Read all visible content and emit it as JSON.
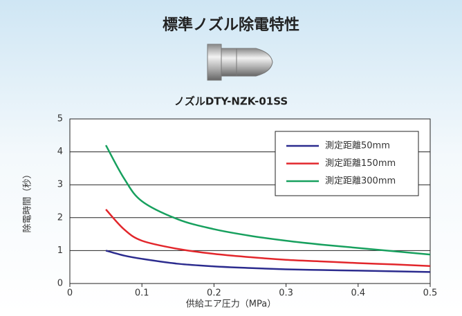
{
  "chart_data": {
    "type": "line",
    "title": "標準ノズル除電特性",
    "subtitle": "ノズルDTY-NZK-01SS",
    "x_label": "供給エア圧力（MPa）",
    "y_label": "除電時間（秒）",
    "x": [
      0.05,
      0.075,
      0.1,
      0.15,
      0.2,
      0.25,
      0.3,
      0.35,
      0.4,
      0.45,
      0.5
    ],
    "series": [
      {
        "name": "測定距離50mm",
        "color": "#2b2b8e",
        "values": [
          1.0,
          0.85,
          0.75,
          0.6,
          0.52,
          0.47,
          0.43,
          0.41,
          0.39,
          0.37,
          0.35
        ]
      },
      {
        "name": "測定距離150mm",
        "color": "#e2262b",
        "values": [
          2.25,
          1.65,
          1.3,
          1.05,
          0.9,
          0.8,
          0.72,
          0.67,
          0.62,
          0.58,
          0.53
        ]
      },
      {
        "name": "測定距離300mm",
        "color": "#17a05e",
        "values": [
          4.2,
          3.2,
          2.5,
          1.95,
          1.65,
          1.45,
          1.3,
          1.18,
          1.08,
          0.98,
          0.88
        ]
      }
    ],
    "xlim": [
      0,
      0.5
    ],
    "xticks": [
      0,
      0.1,
      0.2,
      0.3,
      0.4,
      0.5
    ],
    "ylim": [
      0,
      5
    ],
    "yticks": [
      0,
      1,
      2,
      3,
      4,
      5
    ],
    "grid": true,
    "legend": "upper right"
  }
}
